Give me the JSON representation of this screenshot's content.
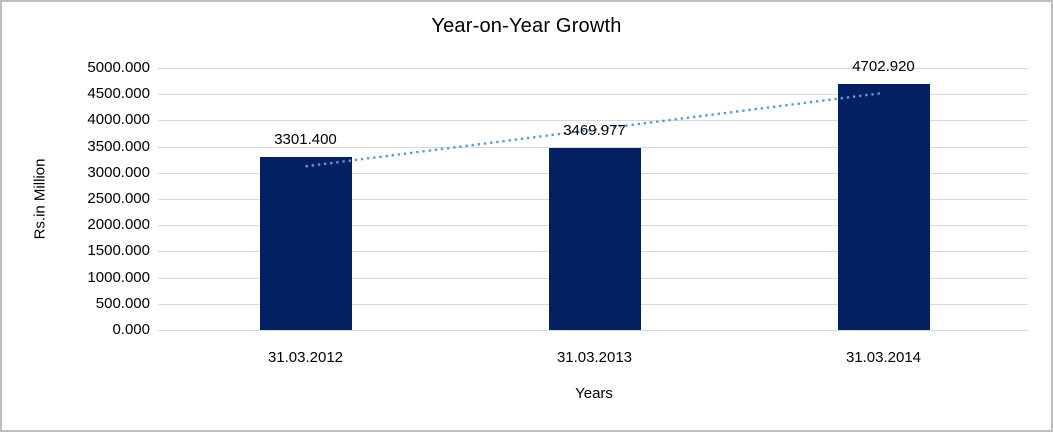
{
  "chart_data": {
    "type": "bar",
    "title": "Year-on-Year Growth",
    "categories": [
      "31.03.2012",
      "31.03.2013",
      "31.03.2014"
    ],
    "values": [
      3301.4,
      3469.977,
      4702.92
    ],
    "data_labels": [
      "3301.400",
      "3469.977",
      "4702.920"
    ],
    "xlabel": "Years",
    "ylabel": "Rs.in Million",
    "ylim": [
      0,
      5000
    ],
    "y_tick_step": 500,
    "y_tick_labels": [
      "0.000",
      "500.000",
      "1000.000",
      "1500.000",
      "2000.000",
      "2500.000",
      "3000.000",
      "3500.000",
      "4000.000",
      "4500.000",
      "5000.000"
    ],
    "grid": true,
    "legend": false,
    "trendline": {
      "type": "linear",
      "style": "dotted",
      "color": "#5b9bd5"
    },
    "colors": {
      "bar": "#032162",
      "gridline": "#d9d9d9",
      "frame_border": "#bfbfbf",
      "text": "#000000"
    }
  }
}
